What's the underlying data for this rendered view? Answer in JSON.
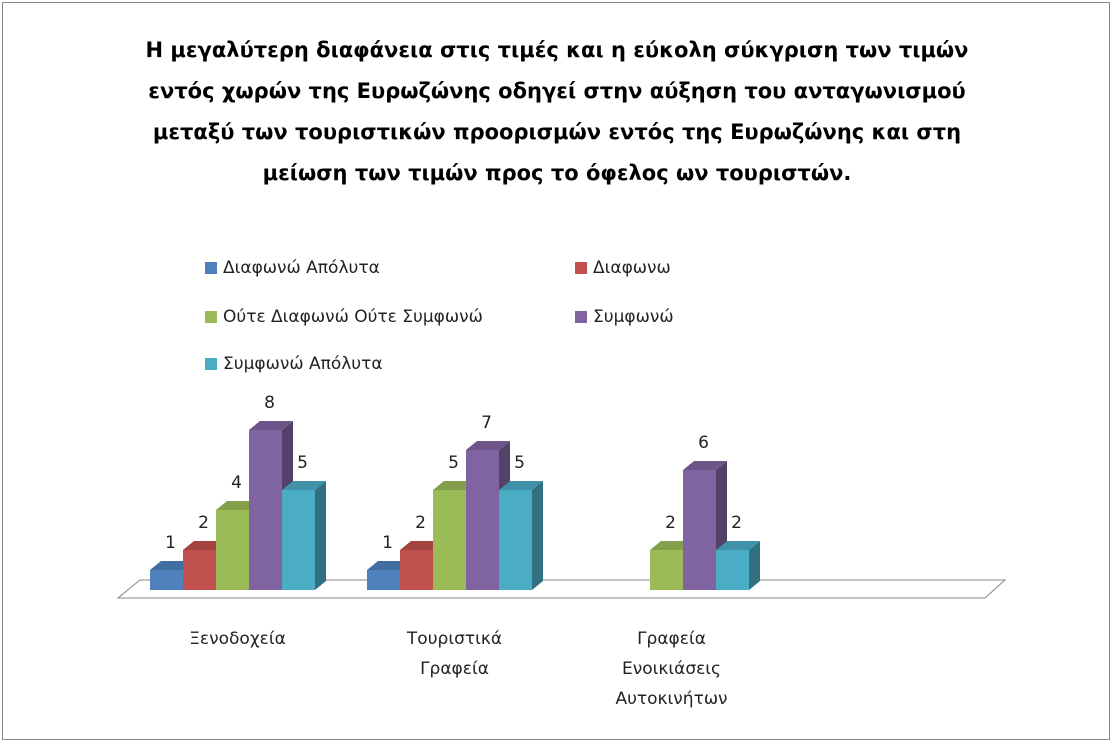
{
  "chart_data": {
    "type": "bar3d",
    "title": "Η μεγαλύτερη διαφάνεια στις τιμές και η εύκολη σύκγριση των τιμών εντός χωρών της Ευρωζώνης οδηγεί στην αύξηση του ανταγωνισμού μεταξύ των τουριστικών προορισμών εντός της Ευρωζώνης και στη μείωση των τιμών προς το όφελος ων τουριστών.",
    "categories": [
      "Ξενοδοχεία",
      "Τουριστικά Γραφεία",
      "Γραφεία Ενοικιάσεις Αυτοκινήτων"
    ],
    "series": [
      {
        "name": "Διαφωνώ Απόλυτα",
        "color": "#4f81bd",
        "values": [
          1,
          1,
          null
        ]
      },
      {
        "name": "Διαφωνω",
        "color": "#c0504d",
        "values": [
          2,
          2,
          null
        ]
      },
      {
        "name": "Ούτε Διαφωνώ Ούτε Συμφωνώ",
        "color": "#9bbb59",
        "values": [
          4,
          5,
          2
        ]
      },
      {
        "name": "Συμφωνώ",
        "color": "#8064a2",
        "values": [
          8,
          7,
          6
        ]
      },
      {
        "name": "Συμφωνώ Απόλυτα",
        "color": "#4bacc6",
        "values": [
          5,
          5,
          2
        ]
      }
    ],
    "legend": "top"
  }
}
